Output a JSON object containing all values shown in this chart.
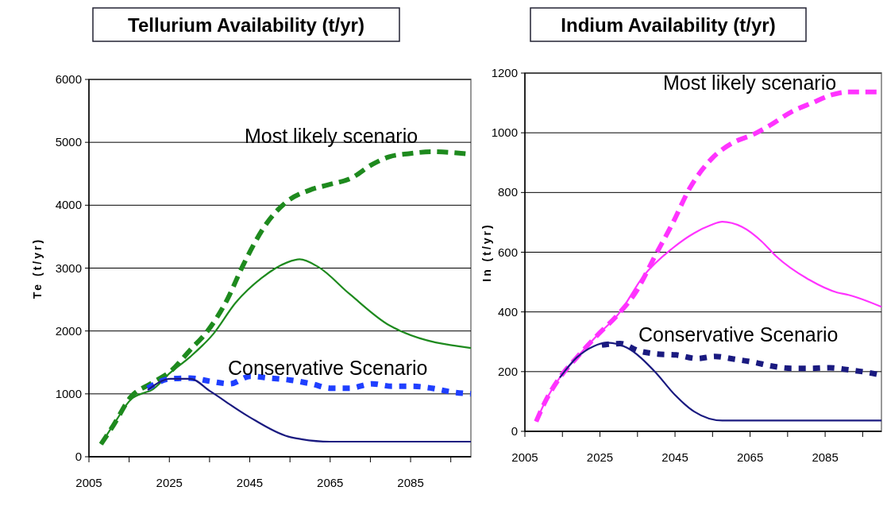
{
  "chart_data": [
    {
      "type": "line",
      "title": "Tellurium Availability (t/yr)",
      "ylabel": "Te (t/yr)",
      "xlim": [
        2005,
        2100
      ],
      "ylim": [
        0,
        6000
      ],
      "xticks": [
        2005,
        {
          "value": 2015,
          "label": null
        },
        2025,
        {
          "value": 2035,
          "label": null
        },
        2045,
        {
          "value": 2055,
          "label": null
        },
        2065,
        {
          "value": 2075,
          "label": null
        },
        2085,
        {
          "value": 2095,
          "label": null
        }
      ],
      "yticks": [
        0,
        1000,
        2000,
        3000,
        4000,
        5000,
        6000
      ],
      "grid": "y",
      "series": [
        {
          "color": "#1e8a1e",
          "line_style": "dashed",
          "x": [
            2008,
            2011.1,
            2015.4,
            2020.3,
            2025.3,
            2030.2,
            2034.5,
            2039.4,
            2043.3,
            2049.3,
            2054.3,
            2059.9,
            2064.9,
            2070.2,
            2075.5,
            2079.7,
            2084.6,
            2090.3,
            2100
          ],
          "values": [
            200,
            500,
            950,
            1160,
            1360,
            1700,
            2000,
            2500,
            3040,
            3720,
            4060,
            4240,
            4330,
            4430,
            4650,
            4770,
            4820,
            4850,
            4810
          ]
        },
        {
          "color": "#1e8a1e",
          "line_style": "solid",
          "x": [
            2008,
            2011.9,
            2015.4,
            2018.9,
            2020.3,
            2025.3,
            2030.2,
            2035.9,
            2041.5,
            2047.9,
            2054.3,
            2057.4,
            2062,
            2069.8,
            2079.7,
            2082.5,
            2100
          ],
          "values": [
            200,
            590,
            910,
            1020,
            1050,
            1340,
            1590,
            1950,
            2450,
            2840,
            3090,
            3140,
            3020,
            2590,
            2090,
            2000,
            1730
          ]
        },
        {
          "color": "#1f3fff",
          "line_style": "dotted",
          "x": [
            2019.6,
            2025.3,
            2030.2,
            2035.2,
            2040.1,
            2045.1,
            2050,
            2055,
            2060.3,
            2065.2,
            2069.8,
            2075.5,
            2080.4,
            2085.4,
            2090.3,
            2095.2,
            2100
          ],
          "values": [
            1090,
            1240,
            1250,
            1200,
            1160,
            1280,
            1250,
            1220,
            1160,
            1090,
            1090,
            1160,
            1120,
            1120,
            1090,
            1030,
            1000
          ]
        },
        {
          "color": "#1a1a80",
          "line_style": "solid",
          "x": [
            2019.6,
            2025.3,
            2030.2,
            2035.2,
            2044.7,
            2054.6,
            2057.8,
            2064.9,
            2100
          ],
          "values": [
            1060,
            1240,
            1240,
            1040,
            640,
            320,
            280,
            240,
            240
          ]
        }
      ],
      "annotations": [
        "Most likely scenario",
        "Conservative Scenario"
      ]
    },
    {
      "type": "line",
      "title": "Indium Availability (t/yr)",
      "ylabel": "In (t/yr)",
      "xlim": [
        2005,
        2100
      ],
      "ylim": [
        0,
        1200
      ],
      "xticks": [
        2005,
        {
          "value": 2015,
          "label": null
        },
        2025,
        {
          "value": 2035,
          "label": null
        },
        2045,
        {
          "value": 2055,
          "label": null
        },
        2065,
        {
          "value": 2075,
          "label": null
        },
        2085,
        {
          "value": 2095,
          "label": null
        }
      ],
      "yticks": [
        0,
        200,
        400,
        600,
        800,
        1000,
        1200
      ],
      "grid": "y",
      "series": [
        {
          "color": "#ff33ff",
          "line_style": "dashed",
          "x": [
            2008,
            2010.6,
            2014.3,
            2018.8,
            2024,
            2030,
            2034.5,
            2039.7,
            2044.2,
            2049,
            2054.6,
            2060.6,
            2065.8,
            2070.3,
            2076.3,
            2081.5,
            2086.7,
            2091.2,
            2100
          ],
          "values": [
            33,
            104,
            180,
            247,
            318,
            394,
            465,
            588,
            693,
            816,
            911,
            968,
            994,
            1025,
            1072,
            1100,
            1127,
            1137,
            1137
          ]
        },
        {
          "color": "#ff33ff",
          "line_style": "solid",
          "x": [
            2008,
            2010.6,
            2014.3,
            2018.8,
            2024,
            2030,
            2036.7,
            2044.2,
            2050.1,
            2054.6,
            2057.6,
            2062.8,
            2068.1,
            2071.8,
            2080.7,
            2088.2,
            2091.2,
            2100
          ],
          "values": [
            33,
            104,
            180,
            247,
            318,
            394,
            522,
            612,
            664,
            691,
            702,
            685,
            636,
            588,
            508,
            465,
            457,
            417
          ]
        },
        {
          "color": "#1a1a80",
          "line_style": "dotted",
          "x": [
            2025.5,
            2030.4,
            2035.2,
            2040.4,
            2045.3,
            2050.9,
            2055.7,
            2060.6,
            2065.8,
            2071,
            2076.3,
            2080.7,
            2086.3,
            2091.2,
            2096.4,
            2100
          ],
          "values": [
            289,
            294,
            270,
            259,
            256,
            244,
            251,
            242,
            232,
            218,
            211,
            211,
            213,
            206,
            197,
            188
          ]
        },
        {
          "color": "#1a1a80",
          "line_style": "solid",
          "x": [
            2014.3,
            2018.8,
            2023.3,
            2027,
            2032.2,
            2039.7,
            2044.9,
            2050.1,
            2057.6,
            2100
          ],
          "values": [
            180,
            247,
            285,
            297,
            280,
            199,
            123,
            66,
            36,
            36
          ]
        }
      ],
      "annotations": [
        "Most likely scenario",
        "Conservative Scenario"
      ]
    }
  ]
}
